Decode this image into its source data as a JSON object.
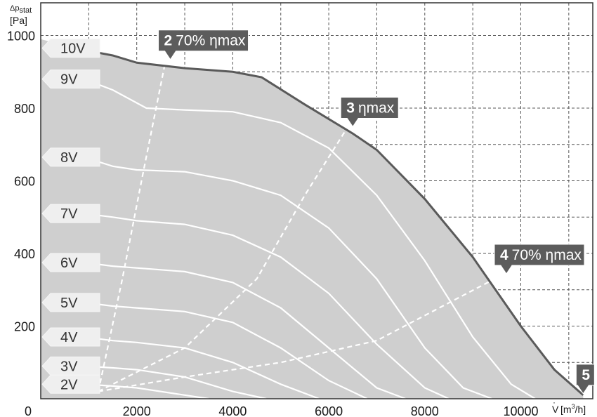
{
  "chart_data": {
    "type": "line",
    "ylabel_delta": "Δp",
    "ylabel_sub": "stat",
    "ylabel_unit": "[Pa]",
    "xlabel_symbol": "V",
    "xlabel_unit_pre": "[m",
    "xlabel_unit_sup": "3",
    "xlabel_unit_post": "/h]",
    "xlim": [
      0,
      11500
    ],
    "ylim": [
      0,
      1000
    ],
    "x_ticks": [
      "0",
      "2000",
      "4000",
      "6000",
      "8000",
      "10000"
    ],
    "y_ticks": [
      "200",
      "400",
      "600",
      "800",
      "1000"
    ],
    "grid": true,
    "envelope": {
      "x": [
        0,
        700,
        1500,
        2000,
        3000,
        4000,
        4600,
        5500,
        6500,
        7000,
        8000,
        9000,
        10000,
        10700,
        11300
      ],
      "y": [
        990,
        965,
        945,
        925,
        910,
        900,
        885,
        810,
        730,
        685,
        550,
        390,
        200,
        80,
        10
      ]
    },
    "series": [
      {
        "name": "10V",
        "x": [
          700,
          1500,
          2000,
          3000,
          4000,
          4600,
          5500,
          6500,
          7000,
          8000,
          9000,
          10000,
          10700,
          11300
        ],
        "y": [
          965,
          945,
          925,
          910,
          900,
          885,
          810,
          730,
          685,
          550,
          390,
          200,
          80,
          10
        ]
      },
      {
        "name": "9V",
        "x": [
          900,
          1500,
          2200,
          3000,
          4000,
          5000,
          6000,
          7000,
          8000,
          9000,
          9800,
          10300
        ],
        "y": [
          880,
          850,
          800,
          795,
          790,
          760,
          690,
          560,
          380,
          170,
          40,
          0
        ]
      },
      {
        "name": "8V",
        "x": [
          900,
          1500,
          2000,
          3000,
          4000,
          5000,
          6000,
          7000,
          8000,
          8800,
          9400
        ],
        "y": [
          665,
          640,
          630,
          625,
          600,
          560,
          470,
          330,
          140,
          30,
          0
        ]
      },
      {
        "name": "7V",
        "x": [
          900,
          1500,
          2000,
          3000,
          4000,
          5000,
          6000,
          7000,
          8000,
          8500
        ],
        "y": [
          510,
          500,
          490,
          480,
          450,
          390,
          290,
          150,
          30,
          0
        ]
      },
      {
        "name": "6V",
        "x": [
          900,
          1500,
          2000,
          3000,
          4000,
          5000,
          6000,
          7000,
          7600
        ],
        "y": [
          375,
          365,
          360,
          350,
          320,
          250,
          140,
          30,
          0
        ]
      },
      {
        "name": "5V",
        "x": [
          900,
          1500,
          2000,
          3000,
          4000,
          5000,
          6000,
          6800
        ],
        "y": [
          265,
          255,
          250,
          240,
          210,
          140,
          50,
          0
        ]
      },
      {
        "name": "4V",
        "x": [
          900,
          1500,
          2000,
          3000,
          4000,
          5000,
          5800
        ],
        "y": [
          170,
          160,
          155,
          140,
          100,
          40,
          0
        ]
      },
      {
        "name": "3V",
        "x": [
          900,
          1500,
          2000,
          3000,
          4000,
          4700
        ],
        "y": [
          90,
          85,
          80,
          60,
          20,
          0
        ]
      },
      {
        "name": "2V",
        "x": [
          900,
          1500,
          2000,
          3000,
          3500
        ],
        "y": [
          40,
          35,
          30,
          10,
          0
        ]
      }
    ],
    "efficiency_lines": [
      {
        "x": [
          1200,
          1700,
          2100,
          2600
        ],
        "y": [
          20,
          330,
          600,
          930
        ]
      },
      {
        "x": [
          1200,
          3000,
          4500,
          5500,
          6500
        ],
        "y": [
          20,
          140,
          330,
          560,
          770
        ]
      },
      {
        "x": [
          1200,
          3000,
          5000,
          7000,
          9600
        ],
        "y": [
          20,
          60,
          100,
          160,
          340
        ]
      }
    ],
    "markers": [
      {
        "num": "2",
        "text": "70% ηmax",
        "x": 2700,
        "y": 930
      },
      {
        "num": "3",
        "text": "ηmax",
        "x": 6500,
        "y": 745
      },
      {
        "num": "4",
        "text": "70% ηmax",
        "x": 9700,
        "y": 340
      },
      {
        "num": "5",
        "text": "",
        "x": 11300,
        "y": 10
      }
    ]
  }
}
